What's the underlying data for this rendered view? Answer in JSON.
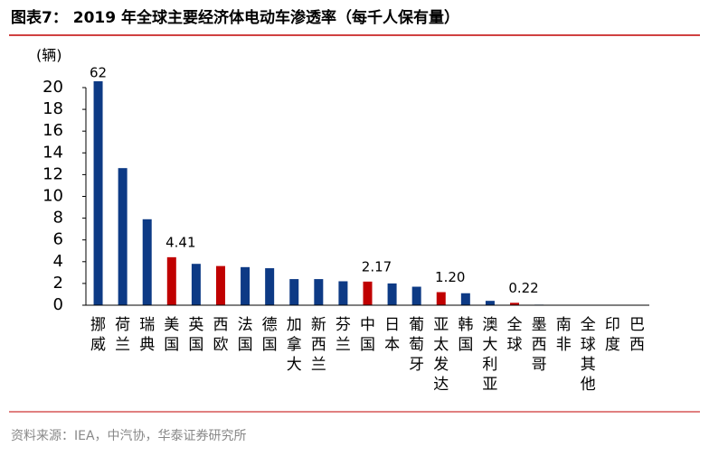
{
  "chart_data": {
    "type": "bar",
    "title": "图表7：  2019 年全球主要经济体电动车渗透率（每千人保有量）",
    "y_label": "(辆)",
    "source": "资料来源：IEA，中汽协，华泰证券研究所",
    "categories": [
      "挪威",
      "荷兰",
      "瑞典",
      "美国",
      "英国",
      "西欧",
      "法国",
      "德国",
      "加拿大",
      "新西兰",
      "芬兰",
      "中国",
      "日本",
      "葡萄牙",
      "亚太发达",
      "韩国",
      "澳大利亚",
      "全球",
      "墨西哥",
      "南非",
      "全球其他",
      "印度",
      "巴西"
    ],
    "values": [
      62,
      12.6,
      7.9,
      4.41,
      3.8,
      3.6,
      3.5,
      3.4,
      2.4,
      2.4,
      2.2,
      2.17,
      2.0,
      1.7,
      1.2,
      1.1,
      0.4,
      0.22,
      0.05,
      0.03,
      0.02,
      0.01,
      0.01
    ],
    "value_labels": [
      "62",
      null,
      null,
      "4.41",
      null,
      null,
      null,
      null,
      null,
      null,
      null,
      "2.17",
      null,
      null,
      "1.20",
      null,
      null,
      "0.22",
      null,
      null,
      null,
      null,
      null
    ],
    "colors": [
      "#0d3a85",
      "#0d3a85",
      "#0d3a85",
      "#c00000",
      "#0d3a85",
      "#c00000",
      "#0d3a85",
      "#0d3a85",
      "#0d3a85",
      "#0d3a85",
      "#0d3a85",
      "#c00000",
      "#0d3a85",
      "#0d3a85",
      "#c00000",
      "#0d3a85",
      "#0d3a85",
      "#c00000",
      "#0d3a85",
      "#0d3a85",
      "#0d3a85",
      "#0d3a85",
      "#0d3a85"
    ],
    "ylim": [
      0,
      20
    ],
    "yticks": [
      0,
      2,
      4,
      6,
      8,
      10,
      12,
      14,
      16,
      18,
      20
    ],
    "grid": false
  }
}
